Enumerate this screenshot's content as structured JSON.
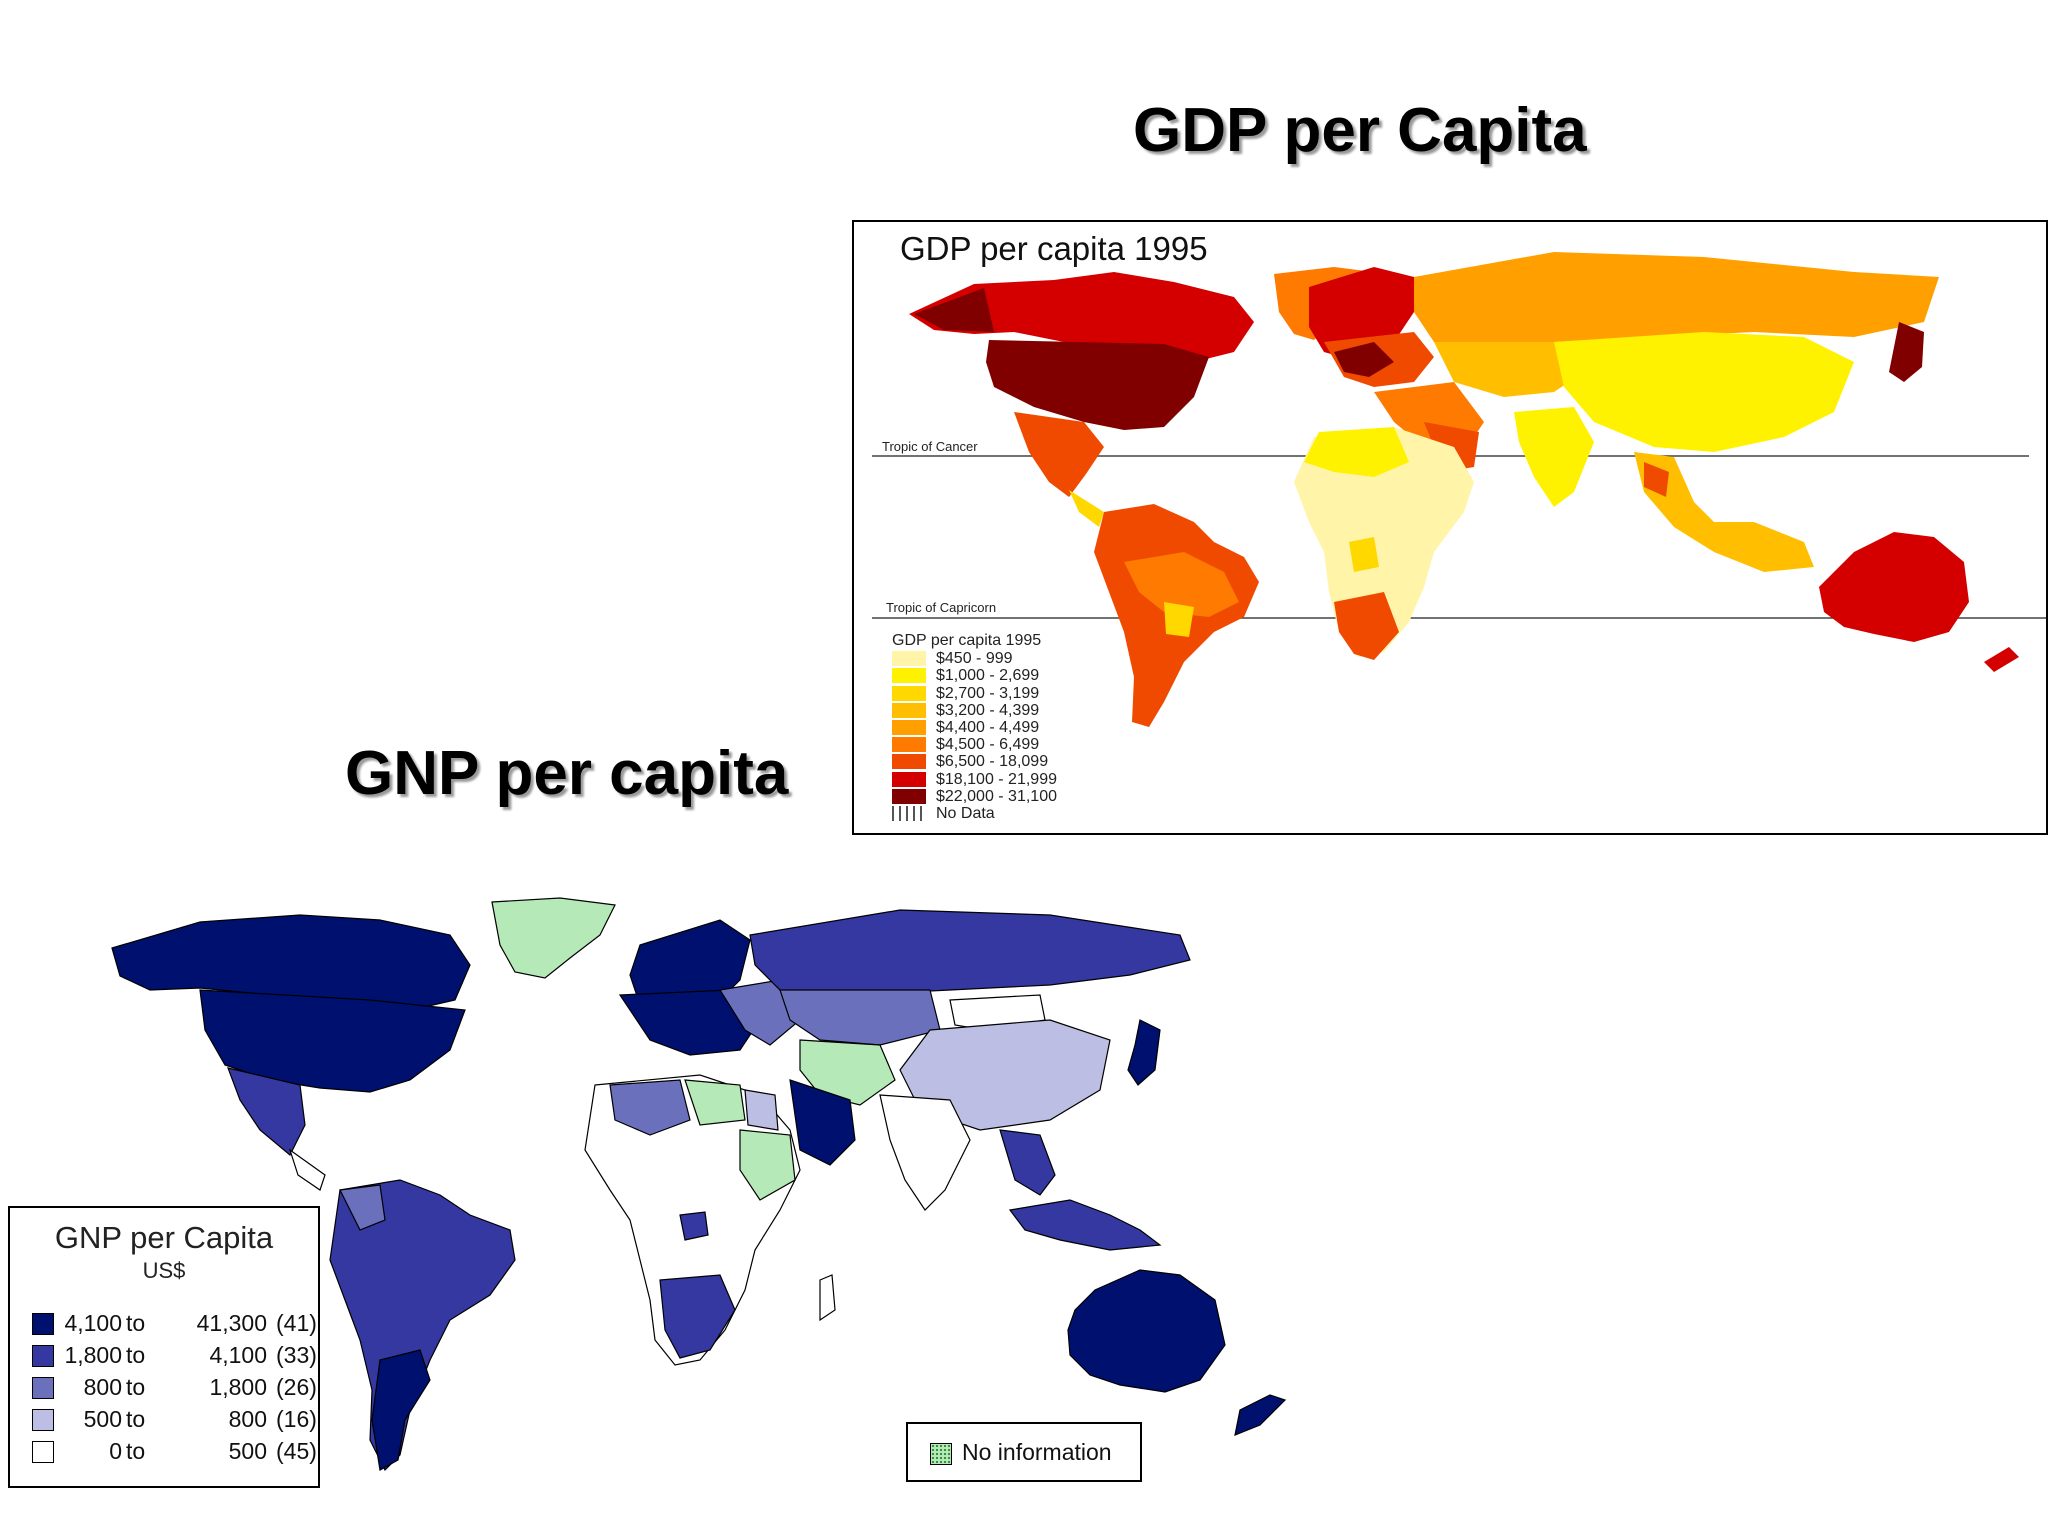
{
  "headings": {
    "gdp": "GDP per Capita",
    "gnp": "GNP per capita"
  },
  "gdp_map": {
    "title": "GDP per capita 1995",
    "tropic_of_cancer": "Tropic of Cancer",
    "tropic_of_capricorn": "Tropic of Capricorn",
    "legend": {
      "title": "GDP per capita 1995",
      "items": [
        {
          "label": "$450 - 999",
          "color": "#fff4a8"
        },
        {
          "label": "$1,000 - 2,699",
          "color": "#fff200"
        },
        {
          "label": "$2,700 - 3,199",
          "color": "#ffd800"
        },
        {
          "label": "$3,200 - 4,399",
          "color": "#ffbf00"
        },
        {
          "label": "$4,400 - 4,499",
          "color": "#ffa000"
        },
        {
          "label": "$4,500 - 6,499",
          "color": "#ff7a00"
        },
        {
          "label": "$6,500 - 18,099",
          "color": "#f04a00"
        },
        {
          "label": "$18,100 - 21,999",
          "color": "#d40000"
        },
        {
          "label": "$22,000 - 31,100",
          "color": "#800000"
        }
      ],
      "no_data": "No Data"
    }
  },
  "gnp_map": {
    "legend": {
      "title": "GNP per Capita",
      "unit": "US$",
      "items": [
        {
          "from": "4,100",
          "to": "to",
          "max": "41,300",
          "count": "(41)",
          "color": "#00106e"
        },
        {
          "from": "1,800",
          "to": "to",
          "max": "4,100",
          "count": "(33)",
          "color": "#3438a0"
        },
        {
          "from": "800",
          "to": "to",
          "max": "1,800",
          "count": "(26)",
          "color": "#6a70bc"
        },
        {
          "from": "500",
          "to": "to",
          "max": "800",
          "count": "(16)",
          "color": "#bcbfe3"
        },
        {
          "from": "0",
          "to": "to",
          "max": "500",
          "count": "(45)",
          "color": "#ffffff"
        }
      ]
    },
    "no_information": "No information",
    "no_information_color": "#b5eab8"
  }
}
